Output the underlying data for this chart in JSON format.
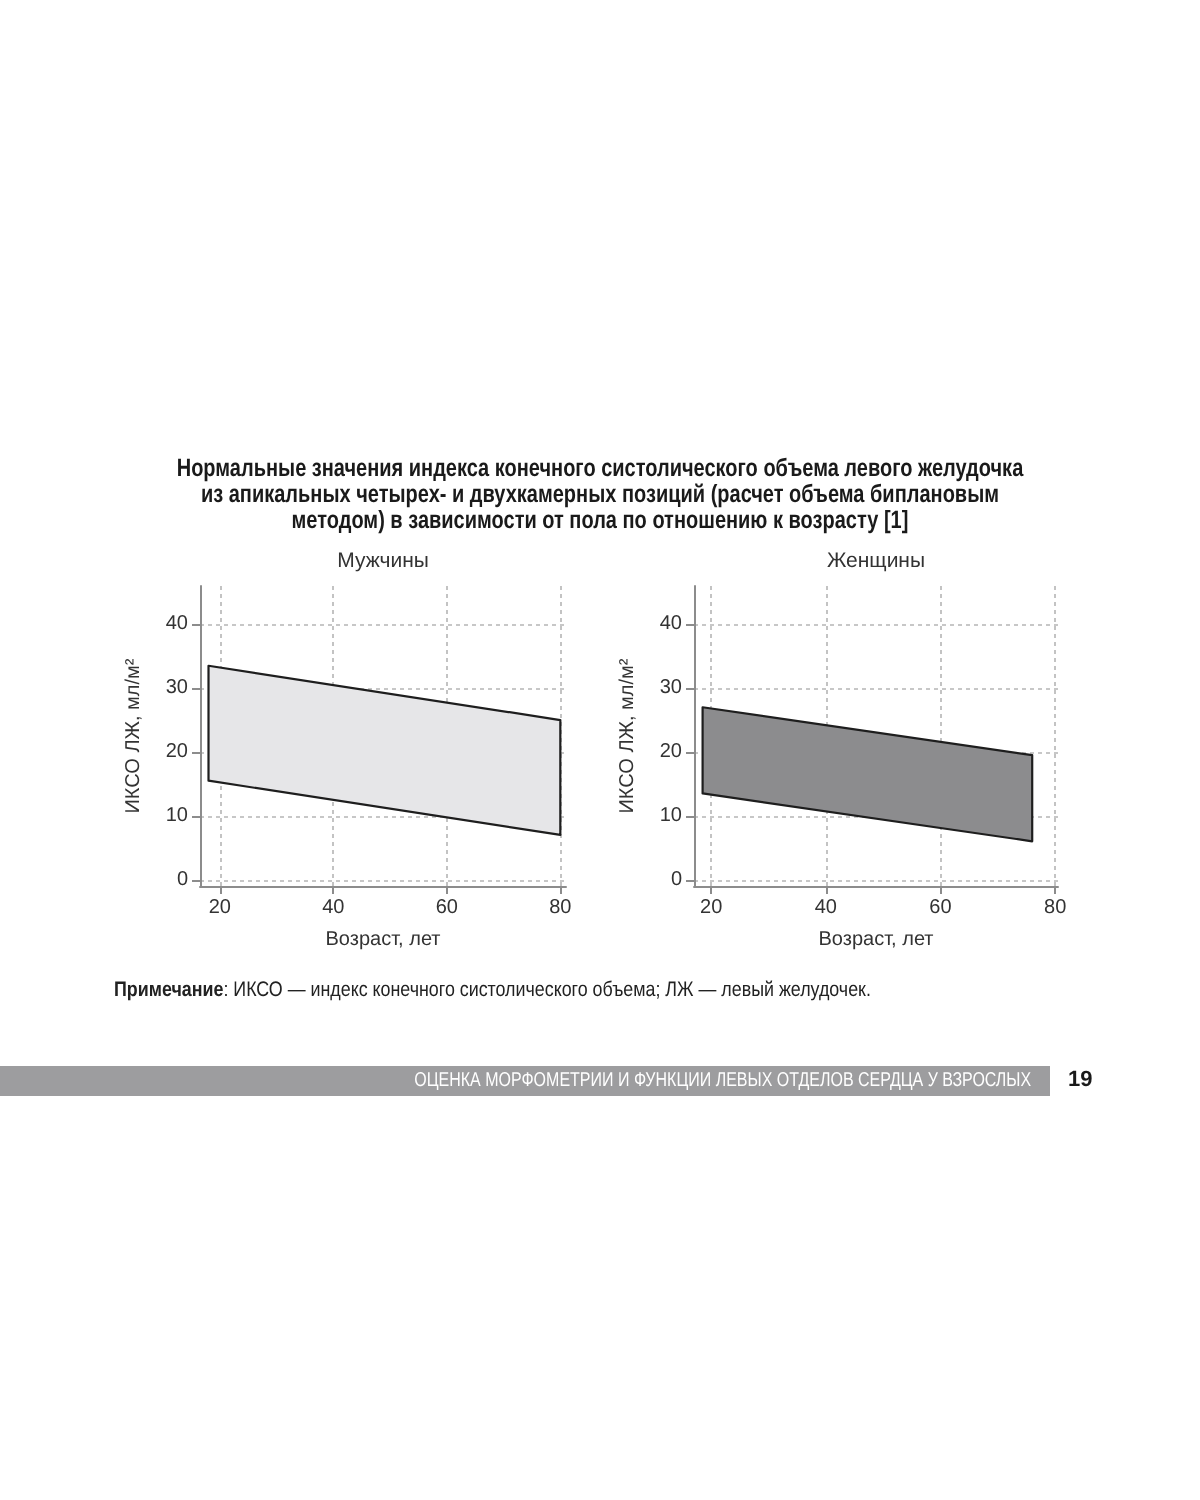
{
  "chart_data": [
    {
      "type": "other",
      "title": "Нормальные значения индекса конечного систолического объема левого желудочка из апикальных четырех- и двухкамерных позиций (расчет объема биплановым методом) в зависимости от пола по отношению к возрасту [1]"
    },
    {
      "type": "area",
      "title": "Мужчины",
      "xlabel": "Возраст, лет",
      "ylabel": "ИКСО ЛЖ, мл/м²",
      "x": [
        18,
        80
      ],
      "series": [
        {
          "color": "#e6e6e8",
          "values": [
            null,
            null
          ],
          "lower": [
            15.5,
            7
          ],
          "upper": [
            33.5,
            25
          ]
        }
      ],
      "xlim": [
        16.5,
        81
      ],
      "xticks": [
        20,
        40,
        60,
        80
      ],
      "ylim": [
        -1,
        46
      ],
      "yticks": [
        0,
        10,
        20,
        30,
        40
      ],
      "grid": true
    },
    {
      "type": "area",
      "title": "Женщины",
      "xlabel": "Возраст, лет",
      "ylabel": "ИКСО ЛЖ, мл/м²",
      "x": [
        18.5,
        76
      ],
      "series": [
        {
          "color": "#8c8c8e",
          "values": [
            null,
            null
          ],
          "lower": [
            13.5,
            6
          ],
          "upper": [
            27,
            19.5
          ]
        }
      ],
      "xlim": [
        17,
        80.5
      ],
      "xticks": [
        20,
        40,
        60,
        80
      ],
      "ylim": [
        -1,
        46
      ],
      "yticks": [
        0,
        10,
        20,
        30,
        40
      ],
      "grid": true
    },
    {
      "type": "other",
      "annotations": [
        "Примечание: ИКСО — индекс конечного систолического объема; ЛЖ — левый желудочек.",
        "ОЦЕНКА МОРФОМЕТРИИ И ФУНКЦИИ ЛЕВЫХ ОТДЕЛОВ СЕРДЦА У ВЗРОСЛЫХ",
        "19"
      ]
    }
  ]
}
